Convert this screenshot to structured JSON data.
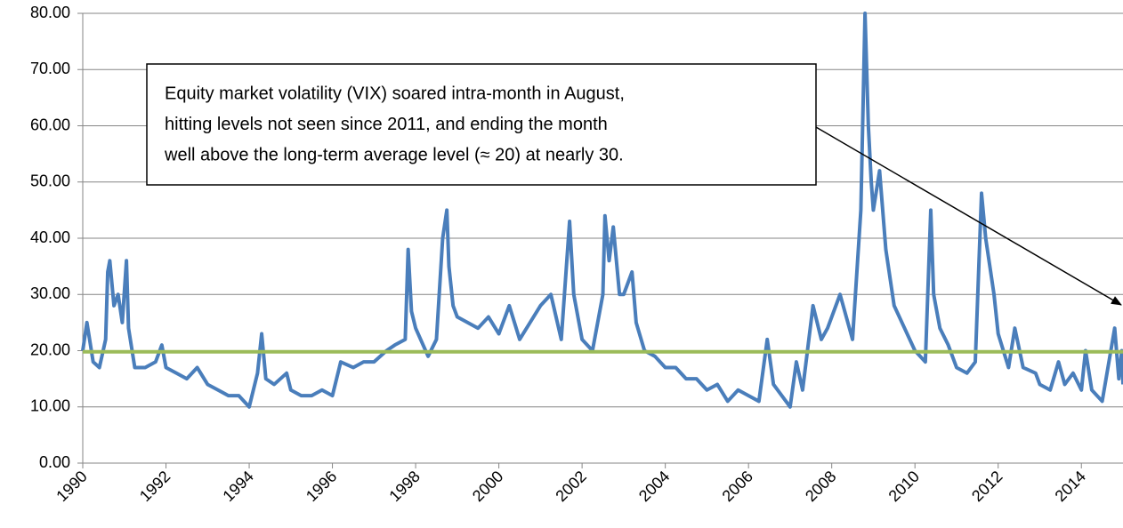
{
  "chart_data": {
    "type": "line",
    "xlim": [
      1990,
      2015
    ],
    "xticks": [
      1990,
      1992,
      1994,
      1996,
      1998,
      2000,
      2002,
      2004,
      2006,
      2008,
      2010,
      2012,
      2014
    ],
    "ylim": [
      0,
      80
    ],
    "yticks": [
      {
        "value": 0,
        "label": "0.00"
      },
      {
        "value": 10,
        "label": "10.00"
      },
      {
        "value": 20,
        "label": "20.00"
      },
      {
        "value": 30,
        "label": "30.00"
      },
      {
        "value": 40,
        "label": "40.00"
      },
      {
        "value": 50,
        "label": "50.00"
      },
      {
        "value": 60,
        "label": "60.00"
      },
      {
        "value": 70,
        "label": "70.00"
      },
      {
        "value": 80,
        "label": "80.00"
      }
    ],
    "grid": true,
    "x": [
      1990.0,
      1990.1,
      1990.25,
      1990.4,
      1990.55,
      1990.6,
      1990.65,
      1990.75,
      1990.85,
      1990.95,
      1991.05,
      1991.1,
      1991.25,
      1991.5,
      1991.75,
      1991.9,
      1992.0,
      1992.25,
      1992.5,
      1992.75,
      1993.0,
      1993.25,
      1993.5,
      1993.75,
      1994.0,
      1994.2,
      1994.3,
      1994.4,
      1994.6,
      1994.9,
      1995.0,
      1995.25,
      1995.5,
      1995.75,
      1996.0,
      1996.2,
      1996.5,
      1996.75,
      1997.0,
      1997.3,
      1997.5,
      1997.75,
      1997.82,
      1997.9,
      1998.0,
      1998.3,
      1998.5,
      1998.65,
      1998.75,
      1998.8,
      1998.9,
      1999.0,
      1999.25,
      1999.5,
      1999.75,
      2000.0,
      2000.25,
      2000.5,
      2000.75,
      2001.0,
      2001.25,
      2001.5,
      2001.7,
      2001.8,
      2002.0,
      2002.25,
      2002.5,
      2002.55,
      2002.65,
      2002.75,
      2002.9,
      2003.0,
      2003.2,
      2003.3,
      2003.5,
      2003.75,
      2004.0,
      2004.25,
      2004.5,
      2004.75,
      2005.0,
      2005.25,
      2005.5,
      2005.75,
      2006.0,
      2006.25,
      2006.45,
      2006.6,
      2006.9,
      2007.0,
      2007.15,
      2007.3,
      2007.55,
      2007.75,
      2007.9,
      2008.0,
      2008.2,
      2008.5,
      2008.7,
      2008.8,
      2008.88,
      2008.95,
      2009.0,
      2009.15,
      2009.3,
      2009.5,
      2009.75,
      2010.0,
      2010.25,
      2010.38,
      2010.45,
      2010.6,
      2010.8,
      2011.0,
      2011.25,
      2011.45,
      2011.6,
      2011.7,
      2011.8,
      2011.9,
      2012.0,
      2012.25,
      2012.4,
      2012.6,
      2012.9,
      2013.0,
      2013.25,
      2013.45,
      2013.6,
      2013.8,
      2014.0,
      2014.1,
      2014.25,
      2014.5,
      2014.8,
      2014.9,
      2014.97,
      2015.0
    ],
    "series": [
      {
        "color": "#4a7ebb",
        "values": [
          20,
          25,
          18,
          17,
          22,
          34,
          36,
          28,
          30,
          25,
          36,
          24,
          17,
          17,
          18,
          21,
          17,
          16,
          15,
          17,
          14,
          13,
          12,
          12,
          10,
          16,
          23,
          15,
          14,
          16,
          13,
          12,
          12,
          13,
          12,
          18,
          17,
          18,
          18,
          20,
          21,
          22,
          38,
          27,
          24,
          19,
          22,
          40,
          45,
          35,
          28,
          26,
          25,
          24,
          26,
          23,
          28,
          22,
          25,
          28,
          30,
          22,
          43,
          30,
          22,
          20,
          30,
          44,
          36,
          42,
          30,
          30,
          34,
          25,
          20,
          19,
          17,
          17,
          15,
          15,
          13,
          14,
          11,
          13,
          12,
          11,
          22,
          14,
          11,
          10,
          18,
          13,
          28,
          22,
          24,
          26,
          30,
          22,
          45,
          80,
          60,
          50,
          45,
          52,
          38,
          28,
          24,
          20,
          18,
          45,
          30,
          24,
          21,
          17,
          16,
          18,
          48,
          40,
          35,
          30,
          23,
          17,
          24,
          17,
          16,
          14,
          13,
          18,
          14,
          16,
          13,
          20,
          13,
          11,
          24,
          15,
          20,
          14
        ]
      }
    ],
    "reference_line": {
      "value": 19.8,
      "color": "#9bbb59"
    },
    "annotation": [
      "Equity market volatility (VIX) soared intra-month in August,",
      "hitting levels not seen since 2011, and ending the month",
      "well above the long-term average level (≈ 20) at nearly 30."
    ]
  }
}
